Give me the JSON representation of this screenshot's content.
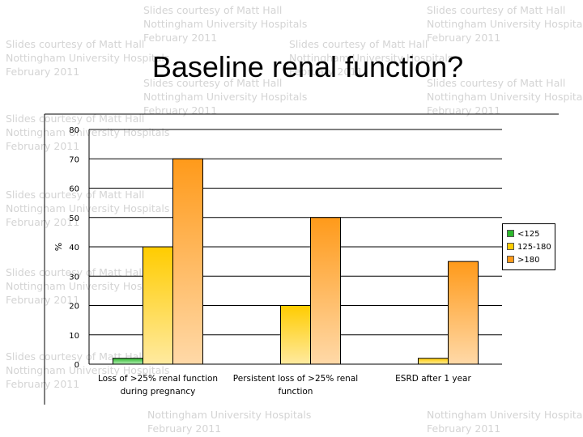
{
  "watermark": {
    "line1": "Slides courtesy of Matt Hall",
    "line2": "Nottingham University Hospitals",
    "line3": "February 2011"
  },
  "slide_title": "Baseline renal function?",
  "chart_data": {
    "type": "bar",
    "title": "",
    "xlabel": "",
    "ylabel": "%",
    "ylim": [
      0,
      80
    ],
    "yticks": [
      0,
      10,
      20,
      30,
      40,
      50,
      60,
      70,
      80
    ],
    "grid": "horizontal",
    "legend_position": "right",
    "categories": [
      "Loss of >25% renal function during pregnancy",
      "Persistent loss of >25% renal function",
      "ESRD after 1 year"
    ],
    "category_lines": [
      [
        "Loss of >25% renal function",
        "during pregnancy"
      ],
      [
        "Persistent loss of >25% renal",
        "function"
      ],
      [
        "ESRD after 1 year"
      ]
    ],
    "series": [
      {
        "name": "<125",
        "values": [
          2,
          0,
          0
        ],
        "color_top": "#2db82d",
        "color_bottom": "#b8f0b8"
      },
      {
        "name": "125-180",
        "values": [
          40,
          20,
          2
        ],
        "color_top": "#ffcc00",
        "color_bottom": "#ffeaa0"
      },
      {
        "name": ">180",
        "values": [
          70,
          50,
          35
        ],
        "color_top": "#ff9a1a",
        "color_bottom": "#ffd9a8"
      }
    ]
  }
}
